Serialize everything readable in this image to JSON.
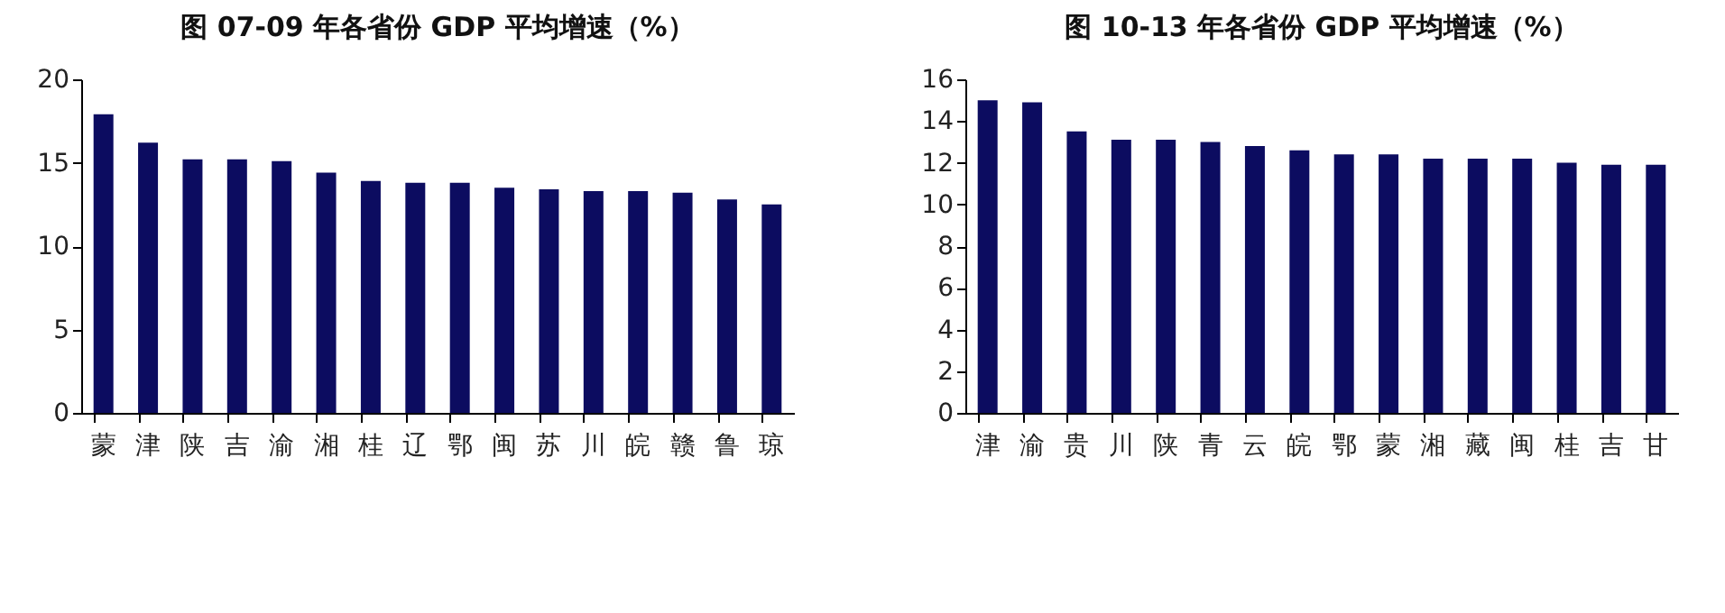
{
  "chart_data": [
    {
      "type": "bar",
      "title": "图   07-09 年各省份 GDP 平均增速（%）",
      "categories": [
        "蒙",
        "津",
        "陕",
        "吉",
        "渝",
        "湘",
        "桂",
        "辽",
        "鄂",
        "闽",
        "苏",
        "川",
        "皖",
        "赣",
        "鲁",
        "琼"
      ],
      "values": [
        17.9,
        16.2,
        15.2,
        15.2,
        15.1,
        14.4,
        13.9,
        13.8,
        13.8,
        13.5,
        13.4,
        13.3,
        13.3,
        13.2,
        12.8,
        12.5
      ],
      "color": "#0c0c60",
      "ylim": [
        0,
        20
      ],
      "yticks": [
        0,
        5,
        10,
        15,
        20
      ],
      "grid": false
    },
    {
      "type": "bar",
      "title": "图   10-13 年各省份 GDP 平均增速（%）",
      "categories": [
        "津",
        "渝",
        "贵",
        "川",
        "陕",
        "青",
        "云",
        "皖",
        "鄂",
        "蒙",
        "湘",
        "藏",
        "闽",
        "桂",
        "吉",
        "甘"
      ],
      "values": [
        15.0,
        14.9,
        13.5,
        13.1,
        13.1,
        13.0,
        12.8,
        12.6,
        12.4,
        12.4,
        12.2,
        12.2,
        12.2,
        12.0,
        11.9,
        11.9
      ],
      "color": "#0c0c60",
      "ylim": [
        0,
        16
      ],
      "yticks": [
        0,
        2,
        4,
        6,
        8,
        10,
        12,
        14,
        16
      ],
      "grid": false
    }
  ]
}
